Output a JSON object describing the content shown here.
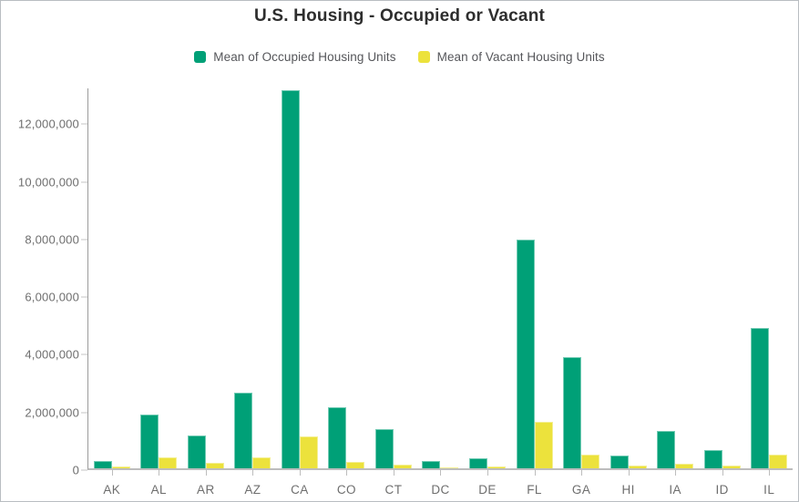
{
  "header": {
    "title": "U.S. Housing - Occupied or Vacant"
  },
  "legend": {
    "items": [
      {
        "label": "Mean of Occupied Housing Units",
        "color": "#00a077"
      },
      {
        "label": "Mean of Vacant Housing Units",
        "color": "#ece23c"
      }
    ]
  },
  "colors": {
    "occupied": "#00a077",
    "vacant": "#ece23c",
    "axis_line": "#9b9b9b",
    "baseline": "#bdbdbd",
    "tick_text": "#6e6e6e",
    "title_text": "#2e2e2e"
  },
  "chart_data": {
    "type": "bar",
    "title": "U.S. Housing - Occupied or Vacant",
    "xlabel": "",
    "ylabel": "",
    "grid": false,
    "legend_position": "top",
    "ylim": [
      0,
      13240000
    ],
    "categories": [
      "AK",
      "AL",
      "AR",
      "AZ",
      "CA",
      "CO",
      "CT",
      "DC",
      "DE",
      "FL",
      "GA",
      "HI",
      "IA",
      "ID",
      "IL"
    ],
    "series": [
      {
        "name": "Mean of Occupied Housing Units",
        "color": "#00a077",
        "values": [
          270000,
          1880000,
          1150000,
          2630000,
          13180000,
          2120000,
          1380000,
          270000,
          360000,
          7960000,
          3860000,
          455000,
          1290000,
          630000,
          4890000
        ]
      },
      {
        "name": "Mean of Vacant Housing Units",
        "color": "#ece23c",
        "values": [
          70000,
          370000,
          190000,
          380000,
          1100000,
          230000,
          140000,
          30000,
          60000,
          1630000,
          490000,
          80000,
          150000,
          100000,
          470000
        ]
      }
    ],
    "yticks": [
      {
        "value": 0,
        "label": "0"
      },
      {
        "value": 2000000,
        "label": "2,000,000"
      },
      {
        "value": 4000000,
        "label": "4,000,000"
      },
      {
        "value": 6000000,
        "label": "6,000,000"
      },
      {
        "value": 8000000,
        "label": "8,000,000"
      },
      {
        "value": 10000000,
        "label": "10,000,000"
      },
      {
        "value": 12000000,
        "label": "12,000,000"
      }
    ]
  }
}
